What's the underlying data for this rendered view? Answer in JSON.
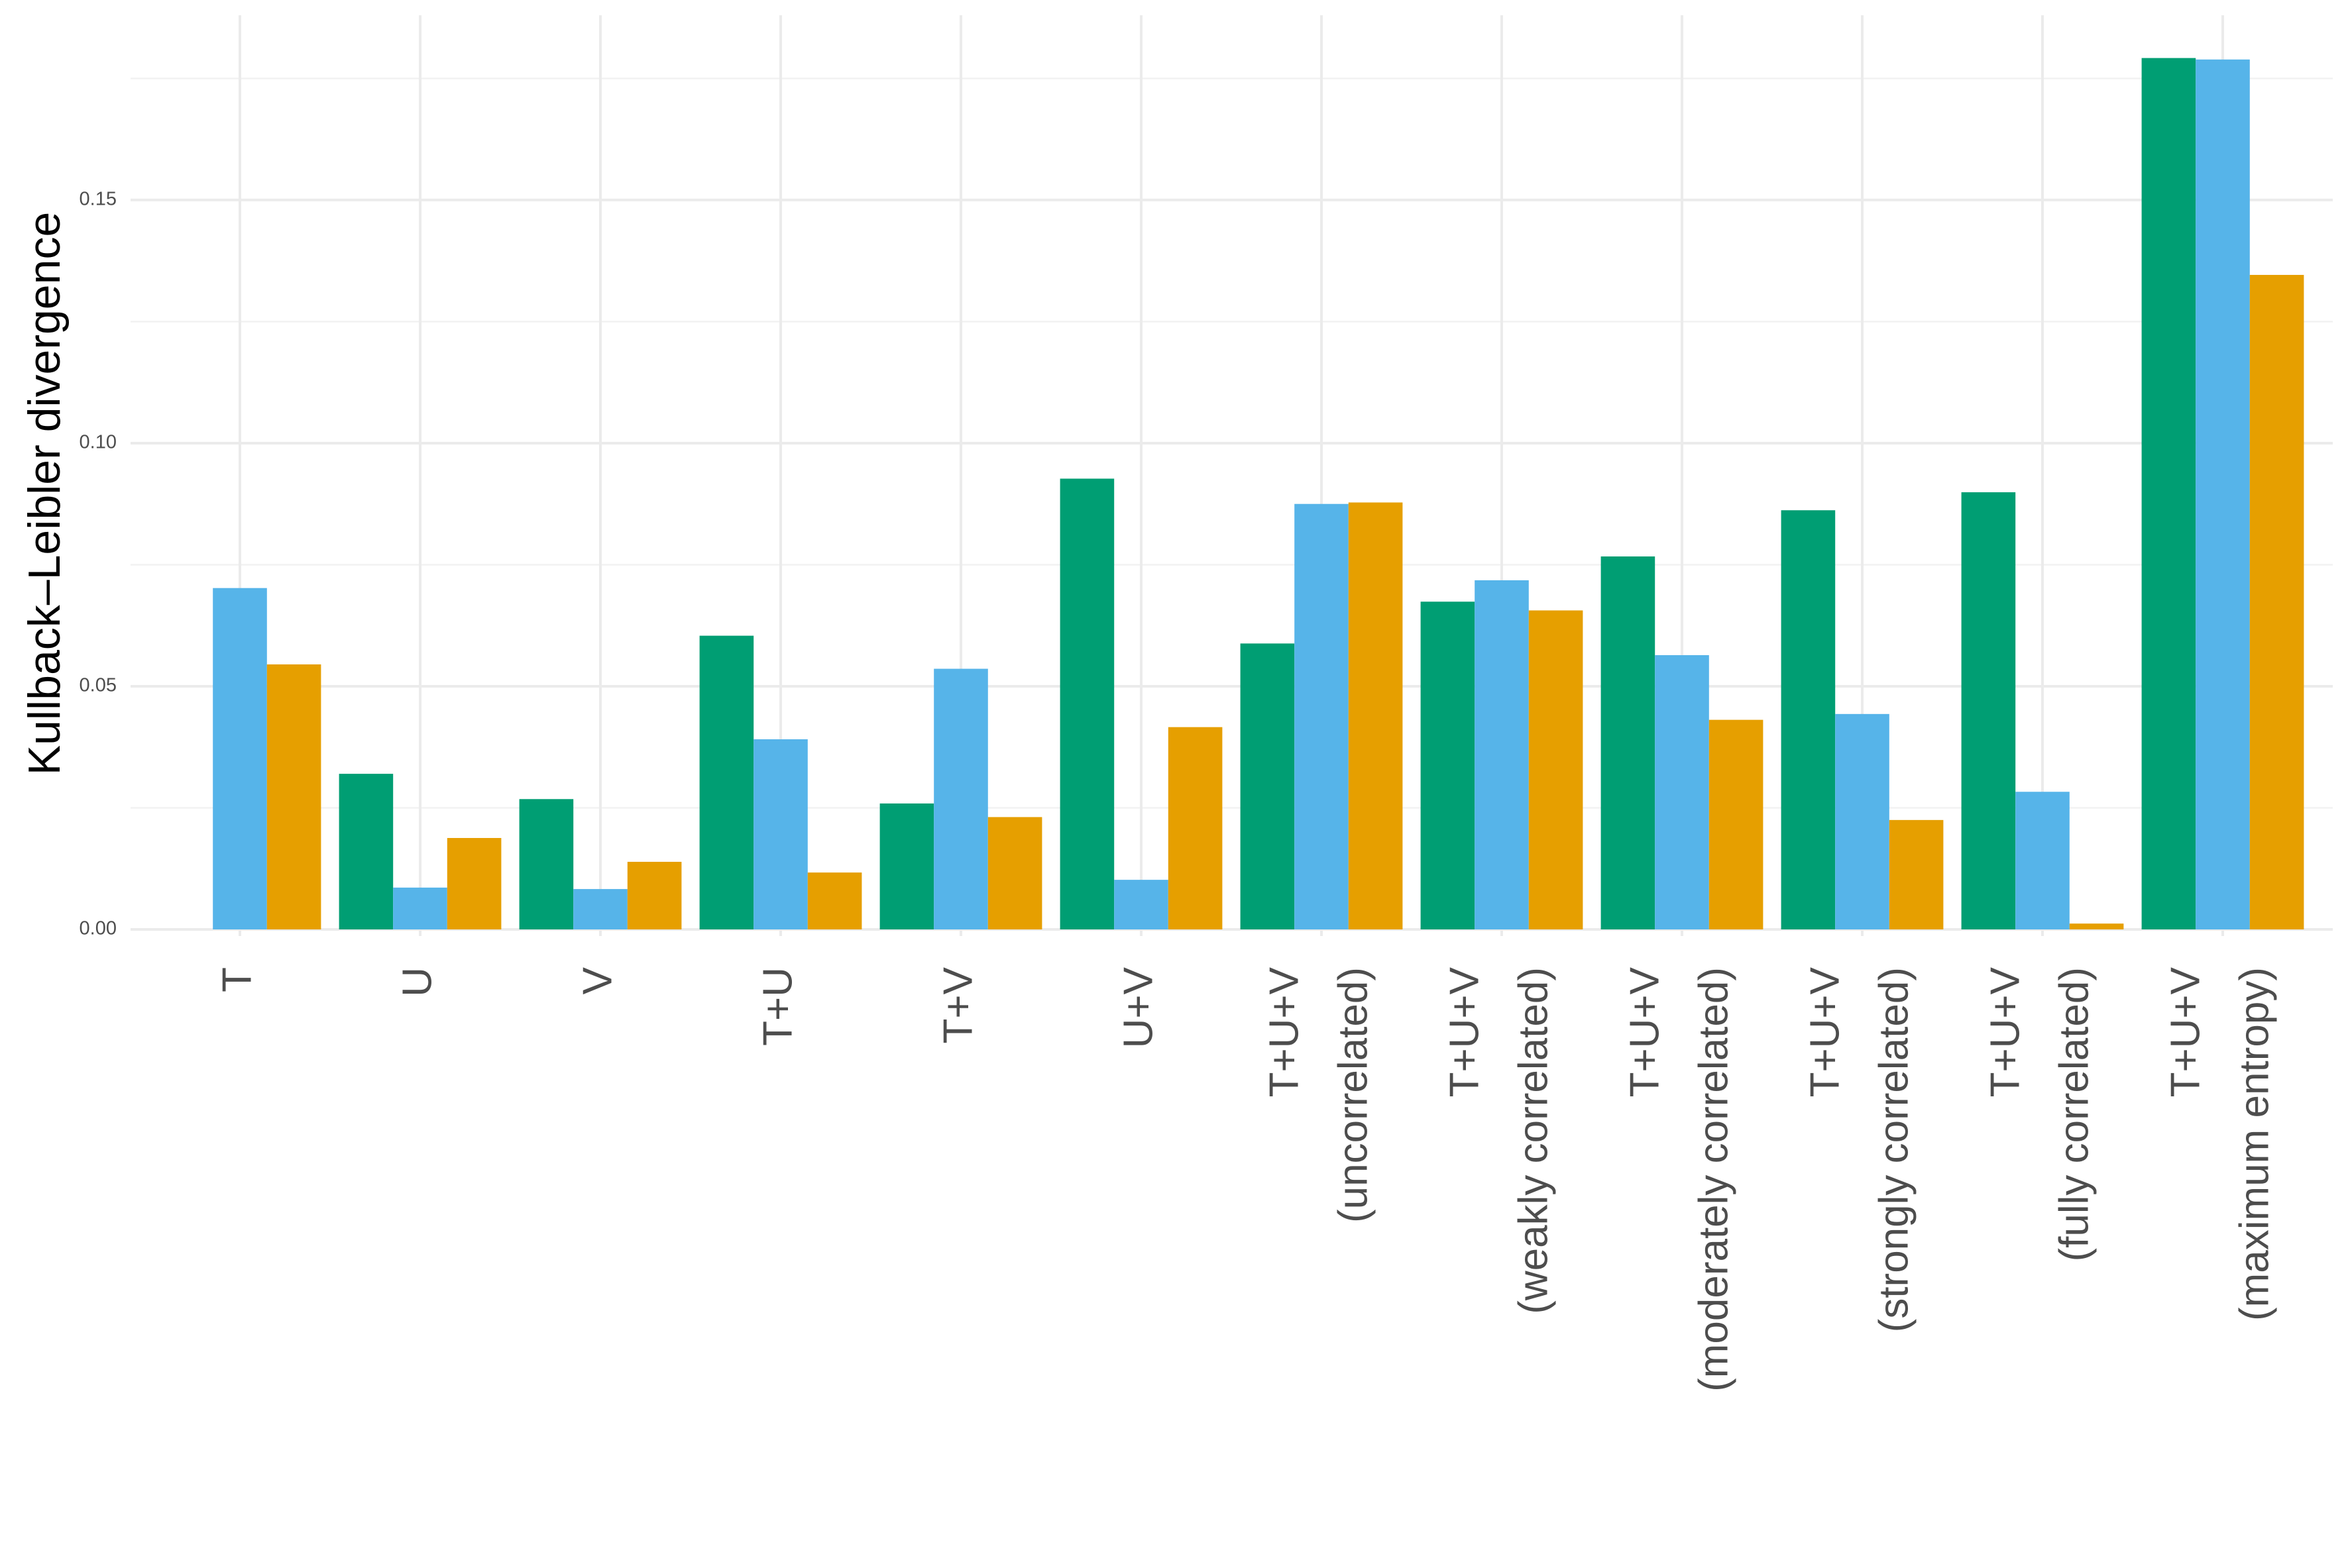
{
  "chart_data": {
    "type": "bar",
    "y_label": "Kullback–Leibler divergence",
    "categories": [
      [
        "T"
      ],
      [
        "U"
      ],
      [
        "V"
      ],
      [
        "T+U"
      ],
      [
        "T+V"
      ],
      [
        "U+V"
      ],
      [
        "T+U+V",
        "(uncorrelated)"
      ],
      [
        "T+U+V",
        "(weakly correlated)"
      ],
      [
        "T+U+V",
        "(moderately correlated)"
      ],
      [
        "T+U+V",
        "(strongly correlated)"
      ],
      [
        "T+U+V",
        "(fully correlated)"
      ],
      [
        "T+U+V",
        "(maximum entropy)"
      ]
    ],
    "series": [
      {
        "color": "#009E73",
        "values": [
          null,
          0.032,
          0.0268,
          0.0604,
          0.0259,
          0.0927,
          0.0588,
          0.0674,
          0.0767,
          0.0862,
          0.0899,
          0.1792
        ]
      },
      {
        "color": "#56B4E9",
        "values": [
          0.0702,
          0.0086,
          0.0083,
          0.0391,
          0.0536,
          0.0102,
          0.0875,
          0.0718,
          0.0564,
          0.0443,
          0.0283,
          0.1789
        ]
      },
      {
        "color": "#E69F00",
        "values": [
          0.0545,
          0.0188,
          0.0139,
          0.0117,
          0.0231,
          0.0416,
          0.0878,
          0.0656,
          0.0431,
          0.0225,
          0.0012,
          0.1346
        ]
      }
    ],
    "ylim": [
      0,
      0.188
    ],
    "yticks": [
      {
        "value": 0,
        "label": "0.00"
      },
      {
        "value": 0.05,
        "label": "0.05"
      },
      {
        "value": 0.1,
        "label": "0.10"
      },
      {
        "value": 0.15,
        "label": "0.15"
      }
    ],
    "y_minor_gridlines": [
      0.025,
      0.075,
      0.125,
      0.175
    ],
    "grid": true
  }
}
